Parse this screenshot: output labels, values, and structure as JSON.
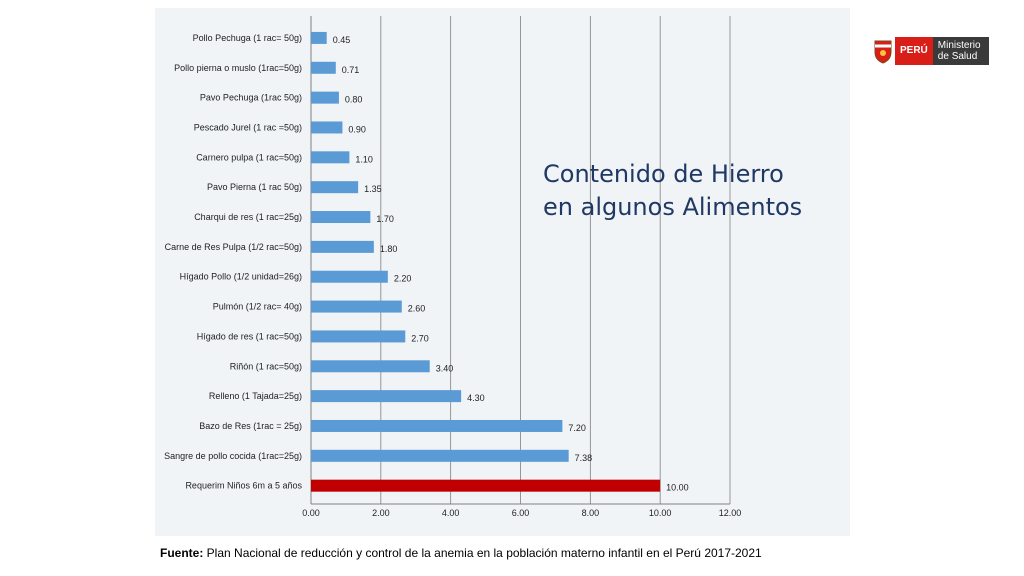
{
  "chart_data": {
    "type": "bar",
    "orientation": "horizontal",
    "categories": [
      "Pollo Pechuga (1 rac= 50g)",
      "Pollo pierna o muslo (1rac=50g)",
      "Pavo Pechuga (1rac 50g)",
      "Pescado Jurel (1 rac =50g)",
      "Carnero pulpa (1 rac=50g)",
      "Pavo Pierna (1 rac 50g)",
      "Charqui de res (1 rac=25g)",
      "Carne de Res Pulpa  (1/2 rac=50g)",
      "Hígado Pollo (1/2 unidad=26g)",
      "Pulmón (1/2 rac= 40g)",
      "Hígado de res (1 rac=50g)",
      "Riñón (1 rac=50g)",
      "Relleno (1 Tajada=25g)",
      "Bazo de Res (1rac = 25g)",
      "Sangre de pollo cocida (1rac=25g)",
      "Requerim Niños 6m a 5 años"
    ],
    "values": [
      0.45,
      0.71,
      0.8,
      0.9,
      1.1,
      1.35,
      1.7,
      1.8,
      2.2,
      2.6,
      2.7,
      3.4,
      4.3,
      7.2,
      7.38,
      10.0
    ],
    "value_labels": [
      "0.45",
      "0.71",
      "0.80",
      "0.90",
      "1.10",
      "1.35",
      "1.70",
      "1.80",
      "2.20",
      "2.60",
      "2.70",
      "3.40",
      "4.30",
      "7.20",
      "7.38",
      "10.00"
    ],
    "xticks": [
      "0.00",
      "2.00",
      "4.00",
      "6.00",
      "8.00",
      "10.00",
      "12.00"
    ],
    "xlim": [
      0,
      12
    ],
    "grid": true,
    "colors": {
      "bar": "#5b9bd5",
      "highlight": "#c00000",
      "grid": "#7f7f7f"
    },
    "highlight_index": 15,
    "title_lines": [
      "Contenido de Hierro",
      "en algunos Alimentos"
    ]
  },
  "logo": {
    "country": "PERÚ",
    "ministry_line1": "Ministerio",
    "ministry_line2": "de Salud"
  },
  "source": {
    "label": "Fuente:",
    "text": " Plan Nacional de reducción y control de la anemia en la población materno infantil en el Perú 2017-2021"
  }
}
